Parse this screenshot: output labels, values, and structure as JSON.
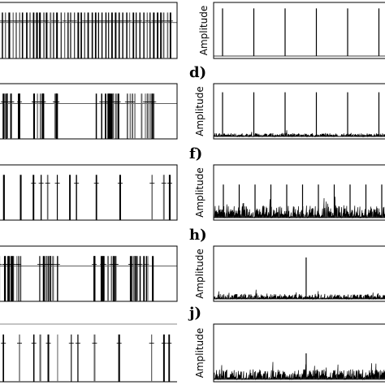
{
  "chart_data": [
    {
      "type": "line",
      "side": "left",
      "row": 0,
      "kind": "spikes-uniform",
      "count": 50,
      "marks": "cross",
      "labels": []
    },
    {
      "type": "line",
      "side": "right",
      "row": 0,
      "kind": "periodic-spikes",
      "peaks": 7,
      "noise": 0.0,
      "spike_height": 0.85,
      "ylabel": "Amplitude",
      "panel": ""
    },
    {
      "type": "line",
      "side": "left",
      "row": 1,
      "kind": "spikes-clustered",
      "marks": "cross"
    },
    {
      "type": "line",
      "side": "right",
      "row": 1,
      "kind": "periodic-spikes",
      "peaks": 7,
      "noise": 0.12,
      "spike_height": 0.8,
      "ylabel": "Amplitude",
      "panel": "d)"
    },
    {
      "type": "line",
      "side": "left",
      "row": 2,
      "kind": "spikes-sparse",
      "marks": "cross"
    },
    {
      "type": "line",
      "side": "right",
      "row": 2,
      "kind": "periodic-spikes",
      "peaks": 11,
      "noise": 0.45,
      "spike_height": 0.6,
      "ylabel": "Amplitude",
      "panel": "f)"
    },
    {
      "type": "line",
      "side": "left",
      "row": 3,
      "kind": "spikes-clustered",
      "marks": "cross"
    },
    {
      "type": "line",
      "side": "right",
      "row": 3,
      "kind": "single-peak",
      "peaks": 1,
      "noise": 0.18,
      "spike_height": 0.75,
      "ylabel": "Amplitude",
      "panel": "h)"
    },
    {
      "type": "line",
      "side": "left",
      "row": 4,
      "kind": "spikes-sparse",
      "marks": "cross"
    },
    {
      "type": "line",
      "side": "right",
      "row": 4,
      "kind": "single-peak",
      "peaks": 1,
      "noise": 0.35,
      "spike_height": 0.45,
      "ylabel": "Amplitude",
      "panel": "j)"
    }
  ]
}
